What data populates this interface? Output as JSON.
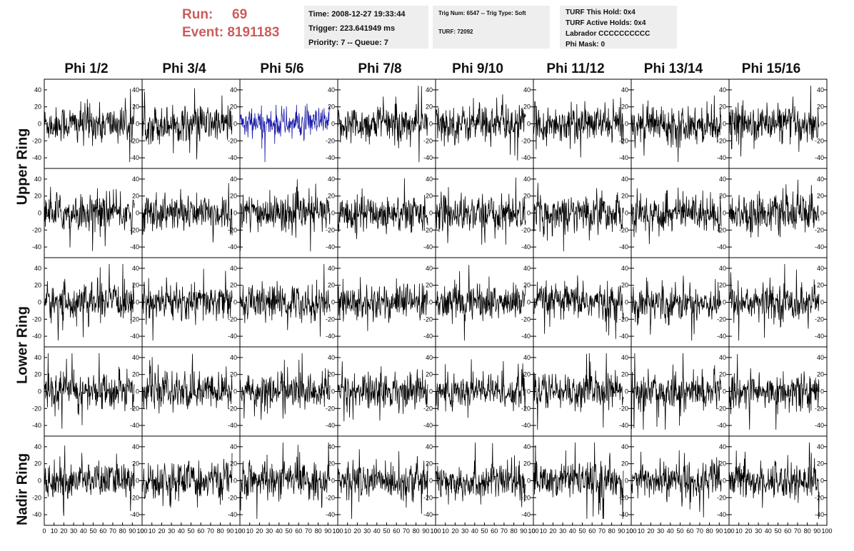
{
  "header": {
    "run_label": "Run:",
    "run_value": "69",
    "event_label": "Event:",
    "event_value": "8191183",
    "time": "Time: 2008-12-27 19:33:44",
    "trigger": "Trigger: 223.641949 ms",
    "priority": "Priority: 7 -- Queue: 7",
    "trig_num": "Trig Num: 6547 -- Trig Type: Soft",
    "turf": "TURF: 72092",
    "turf_this_hold": "TURF This Hold: 0x4",
    "turf_active_holds": "TURF Active Holds: 0x4",
    "labrador": "Labrador CCCCCCCCCC",
    "phi_mask": "Phi Mask: 0"
  },
  "phi_labels": [
    "Phi 1/2",
    "Phi 3/4",
    "Phi 5/6",
    "Phi 7/8",
    "Phi 9/10",
    "Phi 11/12",
    "Phi 13/14",
    "Phi 15/16"
  ],
  "ring_labels": [
    "Upper Ring",
    "Lower Ring",
    "Nadir Ring"
  ],
  "chart_data": {
    "type": "line",
    "layout": "grid of 5 rows x 8 columns waveform panels",
    "xlim": [
      0,
      100
    ],
    "ylim": [
      -50,
      50
    ],
    "x_ticks": [
      0,
      10,
      20,
      30,
      40,
      50,
      60,
      70,
      80,
      90,
      100
    ],
    "y_ticks": [
      -40,
      -20,
      0,
      20,
      40
    ],
    "y_tick_labels": [
      "-40",
      "-20",
      "0",
      "20",
      "40"
    ],
    "x_tick_labels": [
      "0",
      "10",
      "20",
      "30",
      "40",
      "50",
      "60",
      "70",
      "80",
      "90",
      "100"
    ],
    "waveform_samples": 260,
    "amplitude_range": [
      -45,
      45
    ],
    "colors": {
      "default_trace": "#000000",
      "highlight_trace": "#1a1aa6"
    },
    "highlight_panel": {
      "row": 0,
      "col": 2
    }
  }
}
